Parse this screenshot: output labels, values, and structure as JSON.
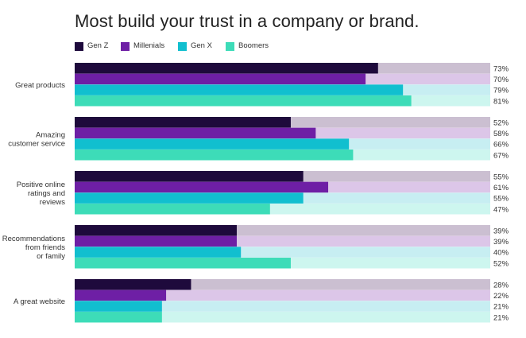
{
  "chart_data": {
    "type": "bar",
    "orientation": "horizontal",
    "title": "Most build your trust in a company or brand.",
    "categories": [
      [
        "Great products"
      ],
      [
        "Amazing",
        "customer service"
      ],
      [
        "Positive online",
        "ratings and",
        "reviews"
      ],
      [
        "Recommendations",
        "from friends",
        "or family"
      ],
      [
        "A great website"
      ]
    ],
    "series": [
      {
        "name": "Gen Z",
        "color": "#1e0a3c",
        "track_color": "#cbbfd1",
        "values": [
          73,
          52,
          55,
          39,
          28
        ]
      },
      {
        "name": "Millenials",
        "color": "#6e1fa5",
        "track_color": "#dcc6e8",
        "values": [
          70,
          58,
          61,
          39,
          22
        ]
      },
      {
        "name": "Gen X",
        "color": "#11bfcf",
        "track_color": "#c7eef2",
        "values": [
          79,
          66,
          55,
          40,
          21
        ]
      },
      {
        "name": "Boomers",
        "color": "#3ddcb8",
        "track_color": "#cdf6ef",
        "values": [
          81,
          67,
          47,
          52,
          21
        ]
      }
    ],
    "value_suffix": "%",
    "xlim": [
      0,
      100
    ],
    "legend_position": "top-left",
    "grid": false
  }
}
